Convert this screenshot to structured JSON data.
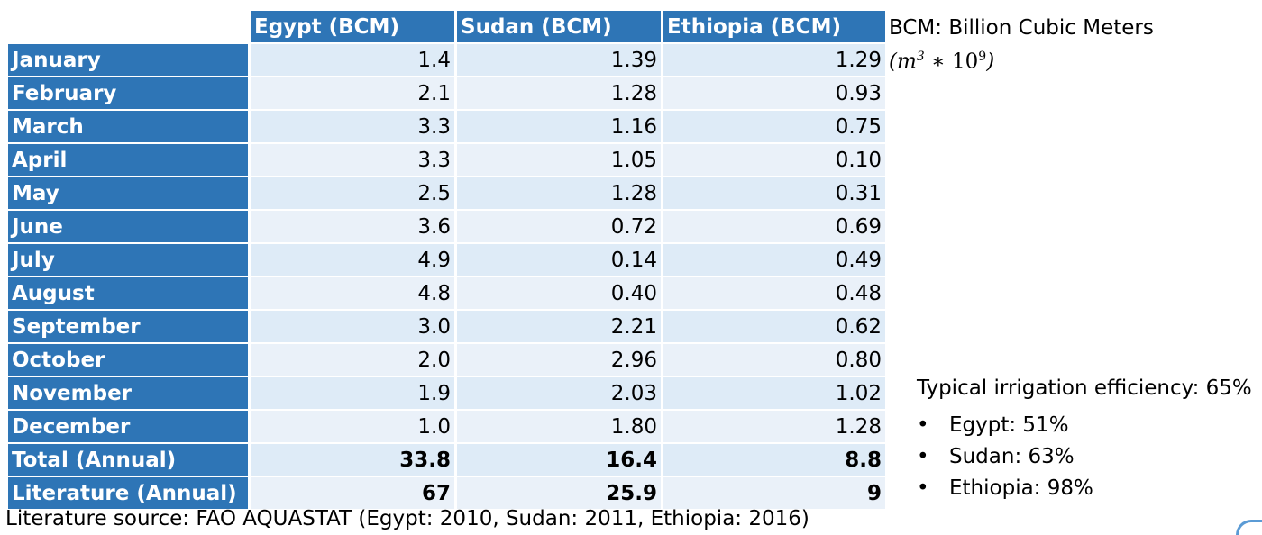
{
  "table": {
    "columns": [
      "Egypt (BCM)",
      "Sudan (BCM)",
      "Ethiopia (BCM)"
    ],
    "rows": [
      {
        "label": "January",
        "values": [
          "1.4",
          "1.39",
          "1.29"
        ]
      },
      {
        "label": "February",
        "values": [
          "2.1",
          "1.28",
          "0.93"
        ]
      },
      {
        "label": "March",
        "values": [
          "3.3",
          "1.16",
          "0.75"
        ]
      },
      {
        "label": "April",
        "values": [
          "3.3",
          "1.05",
          "0.10"
        ]
      },
      {
        "label": "May",
        "values": [
          "2.5",
          "1.28",
          "0.31"
        ]
      },
      {
        "label": "June",
        "values": [
          "3.6",
          "0.72",
          "0.69"
        ]
      },
      {
        "label": "July",
        "values": [
          "4.9",
          "0.14",
          "0.49"
        ]
      },
      {
        "label": "August",
        "values": [
          "4.8",
          "0.40",
          "0.48"
        ]
      },
      {
        "label": "September",
        "values": [
          "3.0",
          "2.21",
          "0.62"
        ]
      },
      {
        "label": "October",
        "values": [
          "2.0",
          "2.96",
          "0.80"
        ]
      },
      {
        "label": "November",
        "values": [
          "1.9",
          "2.03",
          "1.02"
        ]
      },
      {
        "label": "December",
        "values": [
          "1.0",
          "1.80",
          "1.28"
        ]
      },
      {
        "label": "Total (Annual)",
        "values": [
          "33.8",
          "16.4",
          "8.8"
        ]
      },
      {
        "label": "Literature (Annual)",
        "values": [
          "67",
          "25.9",
          "9"
        ]
      }
    ]
  },
  "chart_data": {
    "type": "table",
    "columns": [
      "Egypt (BCM)",
      "Sudan (BCM)",
      "Ethiopia (BCM)"
    ],
    "categories": [
      "January",
      "February",
      "March",
      "April",
      "May",
      "June",
      "July",
      "August",
      "September",
      "October",
      "November",
      "December",
      "Total (Annual)",
      "Literature (Annual)"
    ],
    "series": [
      {
        "name": "Egypt (BCM)",
        "values": [
          1.4,
          2.1,
          3.3,
          3.3,
          2.5,
          3.6,
          4.9,
          4.8,
          3.0,
          2.0,
          1.9,
          1.0,
          33.8,
          67
        ]
      },
      {
        "name": "Sudan (BCM)",
        "values": [
          1.39,
          1.28,
          1.16,
          1.05,
          1.28,
          0.72,
          0.14,
          0.4,
          2.21,
          2.96,
          2.03,
          1.8,
          16.4,
          25.9
        ]
      },
      {
        "name": "Ethiopia (BCM)",
        "values": [
          1.29,
          0.93,
          0.75,
          0.1,
          0.31,
          0.69,
          0.49,
          0.48,
          0.62,
          0.8,
          1.02,
          1.28,
          8.8,
          9
        ]
      }
    ]
  },
  "notes": {
    "bcm_definition": "BCM: Billion Cubic Meters",
    "bcm_formula": {
      "open": "(",
      "m": "m",
      "m_exp": "3",
      "op": " ∗ ",
      "ten": "10",
      "ten_exp": "9",
      "close": ")"
    },
    "efficiency_title": "Typical irrigation efficiency: 65%",
    "efficiency_items": [
      "Egypt: 51%",
      "Sudan: 63%",
      "Ethiopia: 98%"
    ],
    "bullet": "•",
    "source": "Literature source: FAO AQUASTAT (Egypt: 2010, Sudan: 2011, Ethiopia: 2016)"
  },
  "colors": {
    "header_blue": "#2e75b6",
    "cell_light": "#deebf7"
  }
}
